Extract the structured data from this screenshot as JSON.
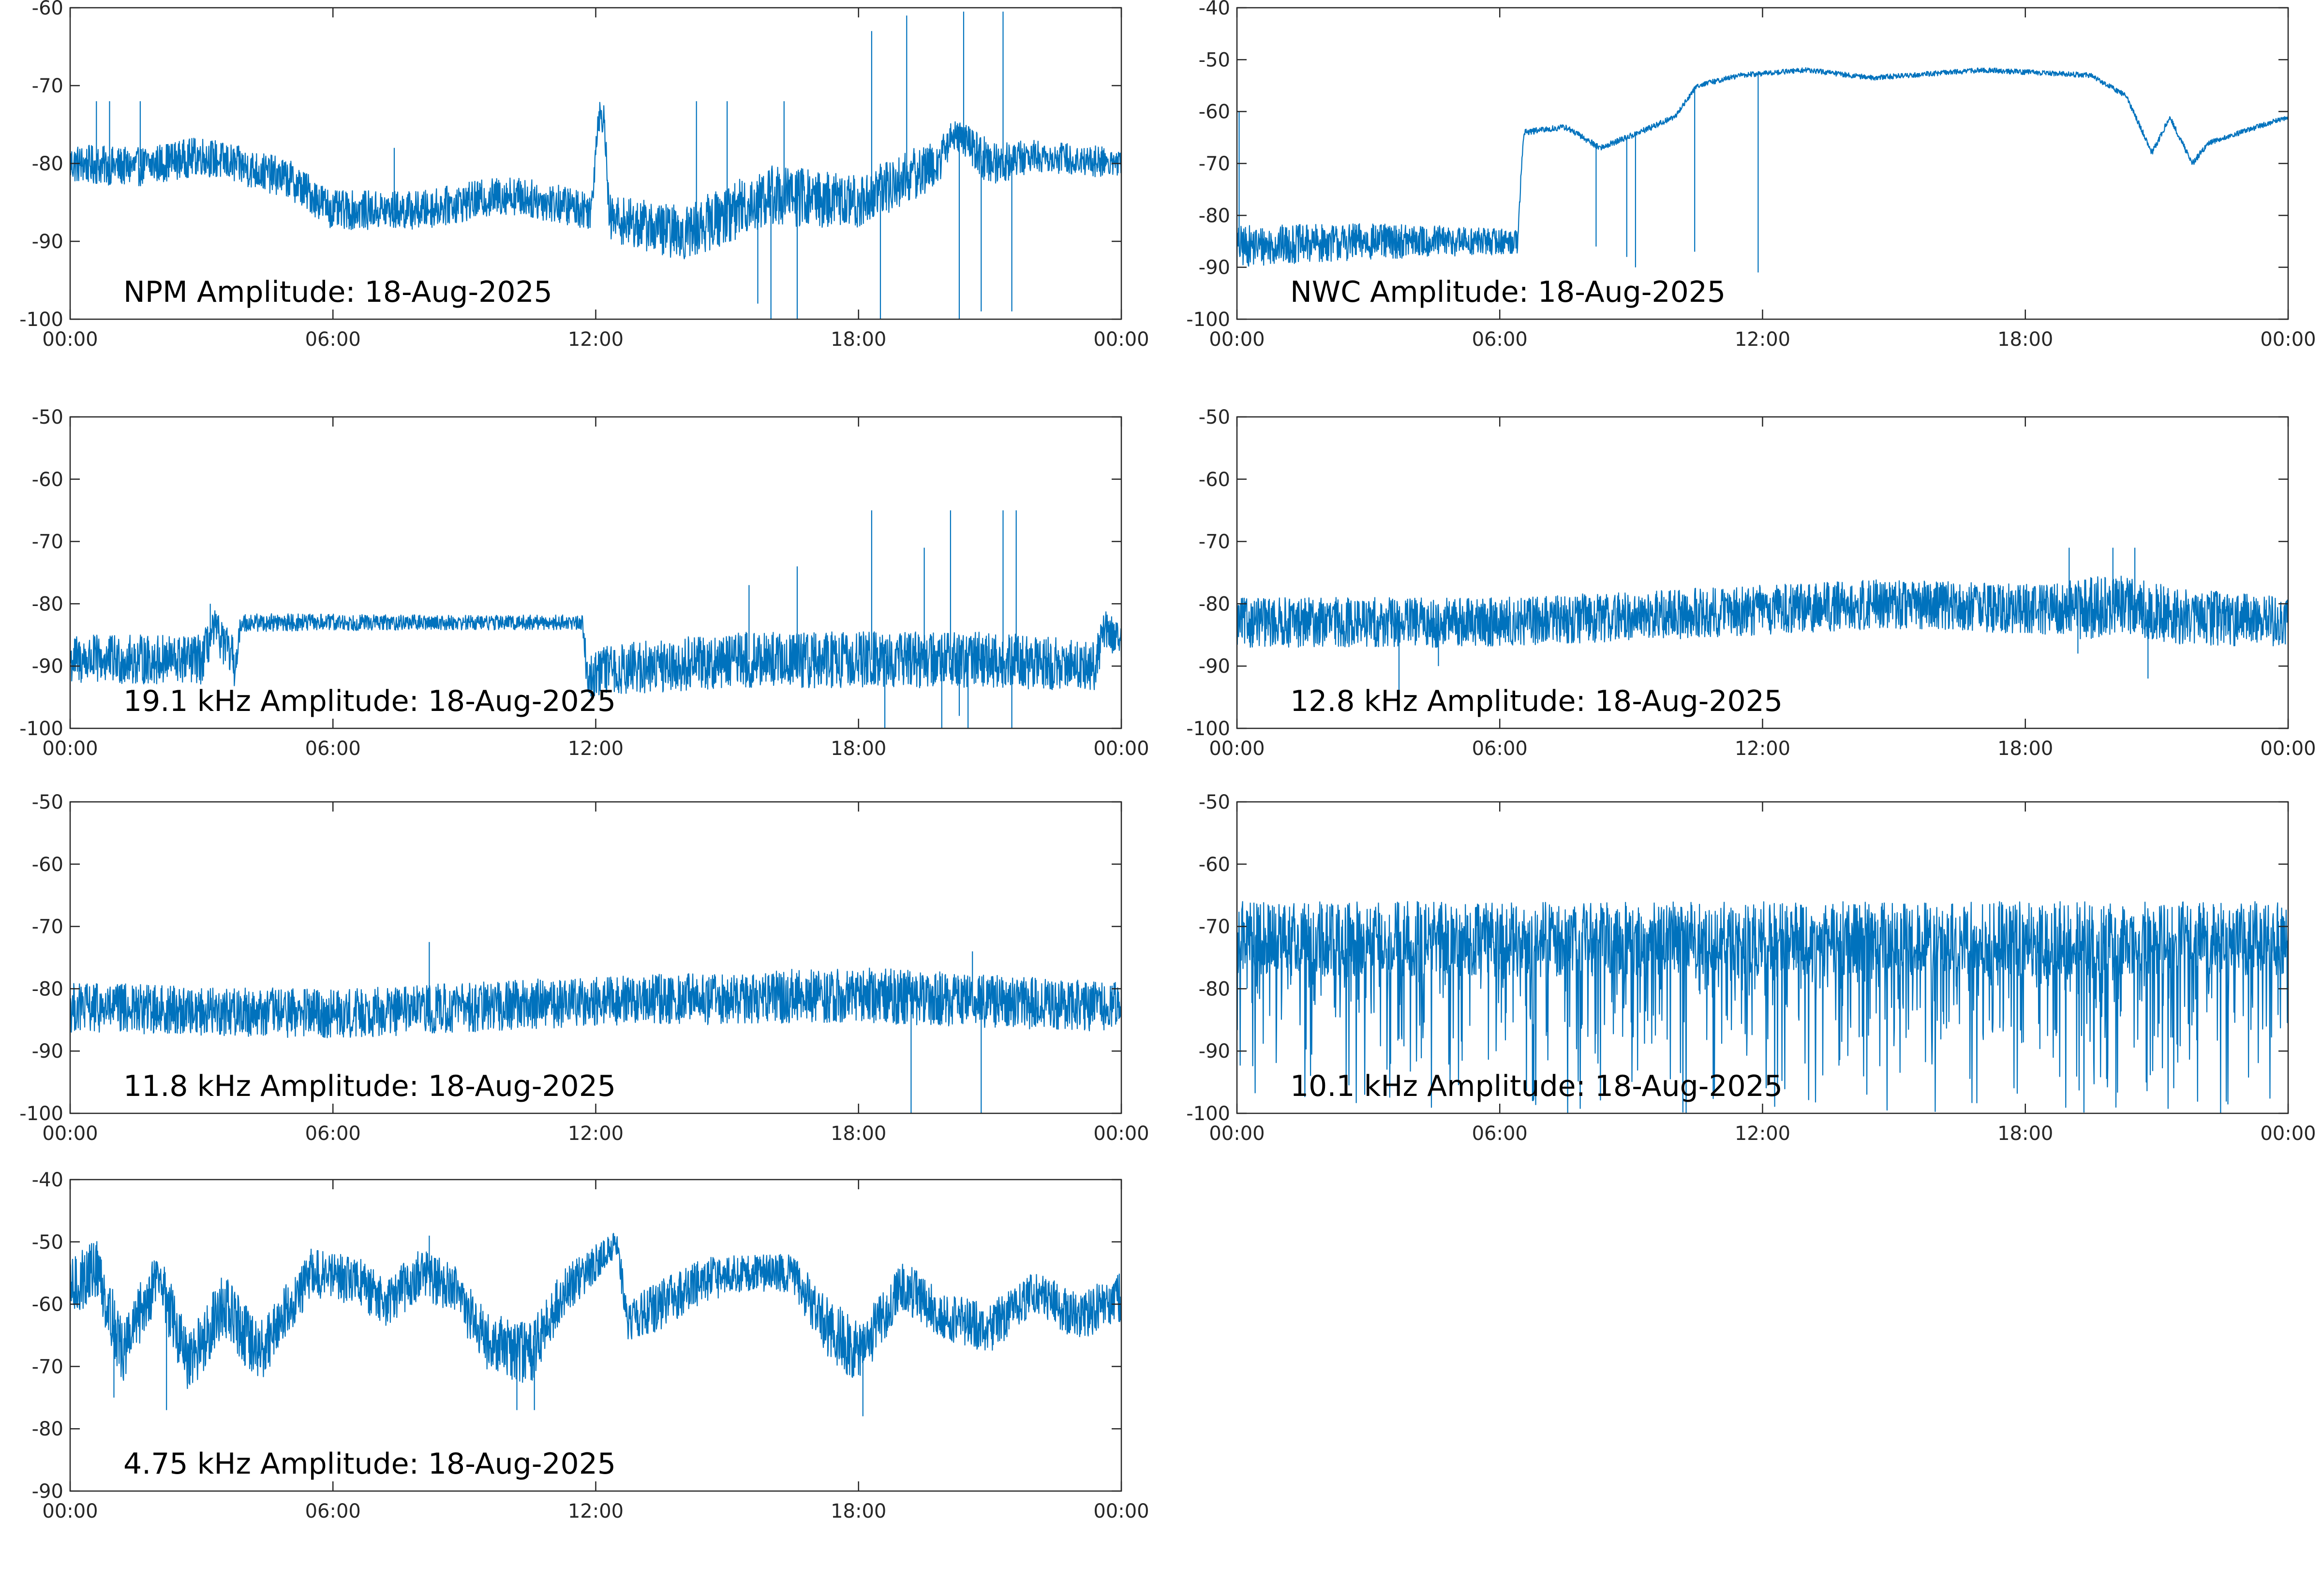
{
  "figure": {
    "background": "#ffffff",
    "line_color": "#0072bd"
  },
  "chart_data": [
    {
      "type": "line",
      "title": "NPM Amplitude: 18-Aug-2025",
      "xlabel": "",
      "ylabel": "",
      "xlim": [
        "00:00",
        "24:00"
      ],
      "ylim": [
        -100,
        -60
      ],
      "xticks": [
        "00:00",
        "06:00",
        "12:00",
        "18:00",
        "00:00"
      ],
      "yticks": [
        "-60",
        "-70",
        "-80",
        "-90",
        "-100"
      ],
      "grid": false,
      "series": [
        {
          "values": [
            {
              "t": 0.0,
              "y": -80,
              "noise": 2.5
            },
            {
              "t": 1.5,
              "y": -80.5,
              "noise": 2.5
            },
            {
              "t": 3.0,
              "y": -79,
              "noise": 2.5
            },
            {
              "t": 5.0,
              "y": -82,
              "noise": 2.5
            },
            {
              "t": 6.0,
              "y": -86,
              "noise": 2.5
            },
            {
              "t": 8.0,
              "y": -86,
              "noise": 2.5
            },
            {
              "t": 10.0,
              "y": -84,
              "noise": 2.5
            },
            {
              "t": 11.9,
              "y": -86,
              "noise": 2.5
            },
            {
              "t": 12.05,
              "y": -74,
              "noise": 2
            },
            {
              "t": 12.2,
              "y": -74,
              "noise": 2
            },
            {
              "t": 12.3,
              "y": -87,
              "noise": 3
            },
            {
              "t": 14.0,
              "y": -89,
              "noise": 3.5
            },
            {
              "t": 16.0,
              "y": -84,
              "noise": 4
            },
            {
              "t": 18.0,
              "y": -85,
              "noise": 3.5
            },
            {
              "t": 19.0,
              "y": -82,
              "noise": 3.5
            },
            {
              "t": 19.8,
              "y": -80,
              "noise": 3
            },
            {
              "t": 20.2,
              "y": -76,
              "noise": 2
            },
            {
              "t": 21.0,
              "y": -80,
              "noise": 3
            },
            {
              "t": 22.0,
              "y": -79,
              "noise": 2
            },
            {
              "t": 24.0,
              "y": -80,
              "noise": 2
            }
          ],
          "spikes": [
            {
              "t": 0.6,
              "y": -72
            },
            {
              "t": 0.9,
              "y": -72
            },
            {
              "t": 1.6,
              "y": -72
            },
            {
              "t": 7.4,
              "y": -78
            },
            {
              "t": 14.3,
              "y": -72
            },
            {
              "t": 15.0,
              "y": -72
            },
            {
              "t": 15.7,
              "y": -98
            },
            {
              "t": 16.0,
              "y": -100
            },
            {
              "t": 16.3,
              "y": -72
            },
            {
              "t": 16.6,
              "y": -100
            },
            {
              "t": 18.3,
              "y": -63
            },
            {
              "t": 18.5,
              "y": -100
            },
            {
              "t": 19.1,
              "y": -61
            },
            {
              "t": 20.3,
              "y": -100
            },
            {
              "t": 20.4,
              "y": -60.5
            },
            {
              "t": 20.8,
              "y": -99
            },
            {
              "t": 21.3,
              "y": -60.5
            },
            {
              "t": 21.5,
              "y": -99
            }
          ]
        }
      ]
    },
    {
      "type": "line",
      "title": "NWC Amplitude: 18-Aug-2025",
      "xlabel": "",
      "ylabel": "",
      "xlim": [
        "00:00",
        "24:00"
      ],
      "ylim": [
        -100,
        -40
      ],
      "xticks": [
        "00:00",
        "06:00",
        "12:00",
        "18:00",
        "00:00"
      ],
      "yticks": [
        "-40",
        "-50",
        "-60",
        "-70",
        "-80",
        "-90",
        "-100"
      ],
      "grid": false,
      "series": [
        {
          "values": [
            {
              "t": 0.0,
              "y": -86,
              "noise": 4
            },
            {
              "t": 3.0,
              "y": -85,
              "noise": 3.5
            },
            {
              "t": 6.4,
              "y": -85,
              "noise": 2.5
            },
            {
              "t": 6.55,
              "y": -64,
              "noise": 0.6
            },
            {
              "t": 7.5,
              "y": -63,
              "noise": 0.6
            },
            {
              "t": 8.3,
              "y": -67,
              "noise": 0.6
            },
            {
              "t": 9.2,
              "y": -64,
              "noise": 0.6
            },
            {
              "t": 10.0,
              "y": -61,
              "noise": 0.5
            },
            {
              "t": 10.5,
              "y": -55,
              "noise": 0.5
            },
            {
              "t": 11.5,
              "y": -53,
              "noise": 0.5
            },
            {
              "t": 13.0,
              "y": -52,
              "noise": 0.5
            },
            {
              "t": 14.5,
              "y": -53.5,
              "noise": 0.5
            },
            {
              "t": 17.0,
              "y": -52,
              "noise": 0.5
            },
            {
              "t": 19.5,
              "y": -53,
              "noise": 0.5
            },
            {
              "t": 20.3,
              "y": -57,
              "noise": 0.5
            },
            {
              "t": 20.9,
              "y": -68,
              "noise": 0.7
            },
            {
              "t": 21.3,
              "y": -61,
              "noise": 0.5
            },
            {
              "t": 21.8,
              "y": -70,
              "noise": 0.7
            },
            {
              "t": 22.2,
              "y": -66,
              "noise": 0.5
            },
            {
              "t": 24.0,
              "y": -61,
              "noise": 0.5
            }
          ],
          "spikes": [
            {
              "t": 0.05,
              "y": -60
            },
            {
              "t": 8.2,
              "y": -86
            },
            {
              "t": 8.9,
              "y": -88
            },
            {
              "t": 9.1,
              "y": -90
            },
            {
              "t": 10.45,
              "y": -87
            },
            {
              "t": 11.9,
              "y": -91
            }
          ]
        }
      ]
    },
    {
      "type": "line",
      "title": "19.1 kHz Amplitude: 18-Aug-2025",
      "xlabel": "",
      "ylabel": "",
      "xlim": [
        "00:00",
        "24:00"
      ],
      "ylim": [
        -100,
        -50
      ],
      "xticks": [
        "00:00",
        "06:00",
        "12:00",
        "18:00",
        "00:00"
      ],
      "yticks": [
        "-50",
        "-60",
        "-70",
        "-80",
        "-90",
        "-100"
      ],
      "grid": false,
      "series": [
        {
          "values": [
            {
              "t": 0.0,
              "y": -89,
              "noise": 4
            },
            {
              "t": 3.0,
              "y": -89,
              "noise": 4
            },
            {
              "t": 3.3,
              "y": -84,
              "noise": 3
            },
            {
              "t": 3.8,
              "y": -90,
              "noise": 4
            },
            {
              "t": 3.9,
              "y": -83,
              "noise": 1.5
            },
            {
              "t": 8.0,
              "y": -83,
              "noise": 1.2
            },
            {
              "t": 11.7,
              "y": -83,
              "noise": 1.2
            },
            {
              "t": 11.8,
              "y": -91,
              "noise": 4
            },
            {
              "t": 15.0,
              "y": -89,
              "noise": 4.5
            },
            {
              "t": 18.0,
              "y": -89,
              "noise": 4.5
            },
            {
              "t": 21.0,
              "y": -89,
              "noise": 4.5
            },
            {
              "t": 23.4,
              "y": -90,
              "noise": 4
            },
            {
              "t": 23.6,
              "y": -84,
              "noise": 3
            },
            {
              "t": 24.0,
              "y": -86,
              "noise": 3
            }
          ],
          "spikes": [
            {
              "t": 3.2,
              "y": -80
            },
            {
              "t": 15.5,
              "y": -77
            },
            {
              "t": 16.6,
              "y": -74
            },
            {
              "t": 18.3,
              "y": -65
            },
            {
              "t": 18.6,
              "y": -100
            },
            {
              "t": 19.5,
              "y": -71
            },
            {
              "t": 19.9,
              "y": -100
            },
            {
              "t": 20.1,
              "y": -65
            },
            {
              "t": 20.3,
              "y": -98
            },
            {
              "t": 20.5,
              "y": -100
            },
            {
              "t": 21.3,
              "y": -65
            },
            {
              "t": 21.5,
              "y": -100
            },
            {
              "t": 21.6,
              "y": -65
            }
          ]
        }
      ]
    },
    {
      "type": "line",
      "title": "12.8 kHz Amplitude: 18-Aug-2025",
      "xlabel": "",
      "ylabel": "",
      "xlim": [
        "00:00",
        "24:00"
      ],
      "ylim": [
        -100,
        -50
      ],
      "xticks": [
        "00:00",
        "06:00",
        "12:00",
        "18:00",
        "00:00"
      ],
      "yticks": [
        "-50",
        "-60",
        "-70",
        "-80",
        "-90",
        "-100"
      ],
      "grid": false,
      "series": [
        {
          "values": [
            {
              "t": 0.0,
              "y": -83,
              "noise": 4
            },
            {
              "t": 6.0,
              "y": -83,
              "noise": 4
            },
            {
              "t": 12.0,
              "y": -81,
              "noise": 4
            },
            {
              "t": 15.0,
              "y": -80,
              "noise": 4
            },
            {
              "t": 18.5,
              "y": -81,
              "noise": 4
            },
            {
              "t": 19.2,
              "y": -81,
              "noise": 5
            },
            {
              "t": 20.0,
              "y": -80,
              "noise": 5
            },
            {
              "t": 21.5,
              "y": -82,
              "noise": 4.5
            },
            {
              "t": 24.0,
              "y": -83,
              "noise": 4
            }
          ],
          "spikes": [
            {
              "t": 3.7,
              "y": -94
            },
            {
              "t": 4.6,
              "y": -90
            },
            {
              "t": 19.0,
              "y": -71
            },
            {
              "t": 19.2,
              "y": -88
            },
            {
              "t": 20.0,
              "y": -71
            },
            {
              "t": 20.5,
              "y": -71
            },
            {
              "t": 20.8,
              "y": -92
            }
          ]
        }
      ]
    },
    {
      "type": "line",
      "title": "11.8 kHz Amplitude: 18-Aug-2025",
      "xlabel": "",
      "ylabel": "",
      "xlim": [
        "00:00",
        "24:00"
      ],
      "ylim": [
        -100,
        -50
      ],
      "xticks": [
        "00:00",
        "06:00",
        "12:00",
        "18:00",
        "00:00"
      ],
      "yticks": [
        "-50",
        "-60",
        "-70",
        "-80",
        "-90",
        "-100"
      ],
      "grid": false,
      "series": [
        {
          "values": [
            {
              "t": 0.0,
              "y": -83,
              "noise": 4
            },
            {
              "t": 6.0,
              "y": -84,
              "noise": 4
            },
            {
              "t": 12.0,
              "y": -82,
              "noise": 4
            },
            {
              "t": 18.0,
              "y": -81,
              "noise": 4.5
            },
            {
              "t": 24.0,
              "y": -83,
              "noise": 4
            }
          ],
          "spikes": [
            {
              "t": 8.2,
              "y": -72.5
            },
            {
              "t": 19.2,
              "y": -100
            },
            {
              "t": 20.6,
              "y": -74
            },
            {
              "t": 20.8,
              "y": -100
            }
          ]
        }
      ]
    },
    {
      "type": "line",
      "title": "10.1 kHz Amplitude: 18-Aug-2025",
      "xlabel": "",
      "ylabel": "",
      "xlim": [
        "00:00",
        "24:00"
      ],
      "ylim": [
        -100,
        -50
      ],
      "xticks": [
        "00:00",
        "06:00",
        "12:00",
        "18:00",
        "00:00"
      ],
      "yticks": [
        "-50",
        "-60",
        "-70",
        "-80",
        "-90",
        "-100"
      ],
      "grid": false,
      "series": [
        {
          "values": [
            {
              "t": 0.0,
              "y": -72,
              "noise": 6,
              "drop": -100
            },
            {
              "t": 24.0,
              "y": -72,
              "noise": 6,
              "drop": -100
            }
          ],
          "spikes": []
        }
      ]
    },
    {
      "type": "line",
      "title": "4.75 kHz Amplitude: 18-Aug-2025",
      "xlabel": "",
      "ylabel": "",
      "xlim": [
        "00:00",
        "24:00"
      ],
      "ylim": [
        -90,
        -40
      ],
      "xticks": [
        "00:00",
        "06:00",
        "12:00",
        "18:00",
        "00:00"
      ],
      "yticks": [
        "-40",
        "-50",
        "-60",
        "-70",
        "-80",
        "-90"
      ],
      "grid": false,
      "series": [
        {
          "values": [
            {
              "t": 0.0,
              "y": -58,
              "noise": 5
            },
            {
              "t": 0.6,
              "y": -54,
              "noise": 5
            },
            {
              "t": 1.2,
              "y": -68,
              "noise": 5
            },
            {
              "t": 2.0,
              "y": -55,
              "noise": 5
            },
            {
              "t": 2.7,
              "y": -70,
              "noise": 5
            },
            {
              "t": 3.5,
              "y": -60,
              "noise": 5
            },
            {
              "t": 4.3,
              "y": -68,
              "noise": 5
            },
            {
              "t": 5.5,
              "y": -55,
              "noise": 4
            },
            {
              "t": 6.5,
              "y": -56,
              "noise": 4
            },
            {
              "t": 7.2,
              "y": -60,
              "noise": 4
            },
            {
              "t": 8.0,
              "y": -55,
              "noise": 4
            },
            {
              "t": 8.8,
              "y": -58,
              "noise": 4
            },
            {
              "t": 9.5,
              "y": -66,
              "noise": 5
            },
            {
              "t": 10.5,
              "y": -68,
              "noise": 5
            },
            {
              "t": 11.3,
              "y": -58,
              "noise": 4
            },
            {
              "t": 12.5,
              "y": -50,
              "noise": 2
            },
            {
              "t": 12.7,
              "y": -63,
              "noise": 3.5
            },
            {
              "t": 13.5,
              "y": -60,
              "noise": 4
            },
            {
              "t": 14.5,
              "y": -56,
              "noise": 3.5
            },
            {
              "t": 15.5,
              "y": -55,
              "noise": 3
            },
            {
              "t": 16.5,
              "y": -55,
              "noise": 3
            },
            {
              "t": 17.2,
              "y": -63,
              "noise": 5
            },
            {
              "t": 18.0,
              "y": -68,
              "noise": 5
            },
            {
              "t": 19.0,
              "y": -57,
              "noise": 4
            },
            {
              "t": 20.0,
              "y": -62,
              "noise": 4
            },
            {
              "t": 21.0,
              "y": -64,
              "noise": 4
            },
            {
              "t": 22.0,
              "y": -58,
              "noise": 3.5
            },
            {
              "t": 23.0,
              "y": -62,
              "noise": 4
            },
            {
              "t": 24.0,
              "y": -59,
              "noise": 4
            }
          ],
          "spikes": [
            {
              "t": 1.0,
              "y": -75
            },
            {
              "t": 2.2,
              "y": -77
            },
            {
              "t": 10.2,
              "y": -77
            },
            {
              "t": 10.6,
              "y": -77
            },
            {
              "t": 18.1,
              "y": -78
            },
            {
              "t": 8.2,
              "y": -49
            }
          ]
        }
      ]
    }
  ]
}
